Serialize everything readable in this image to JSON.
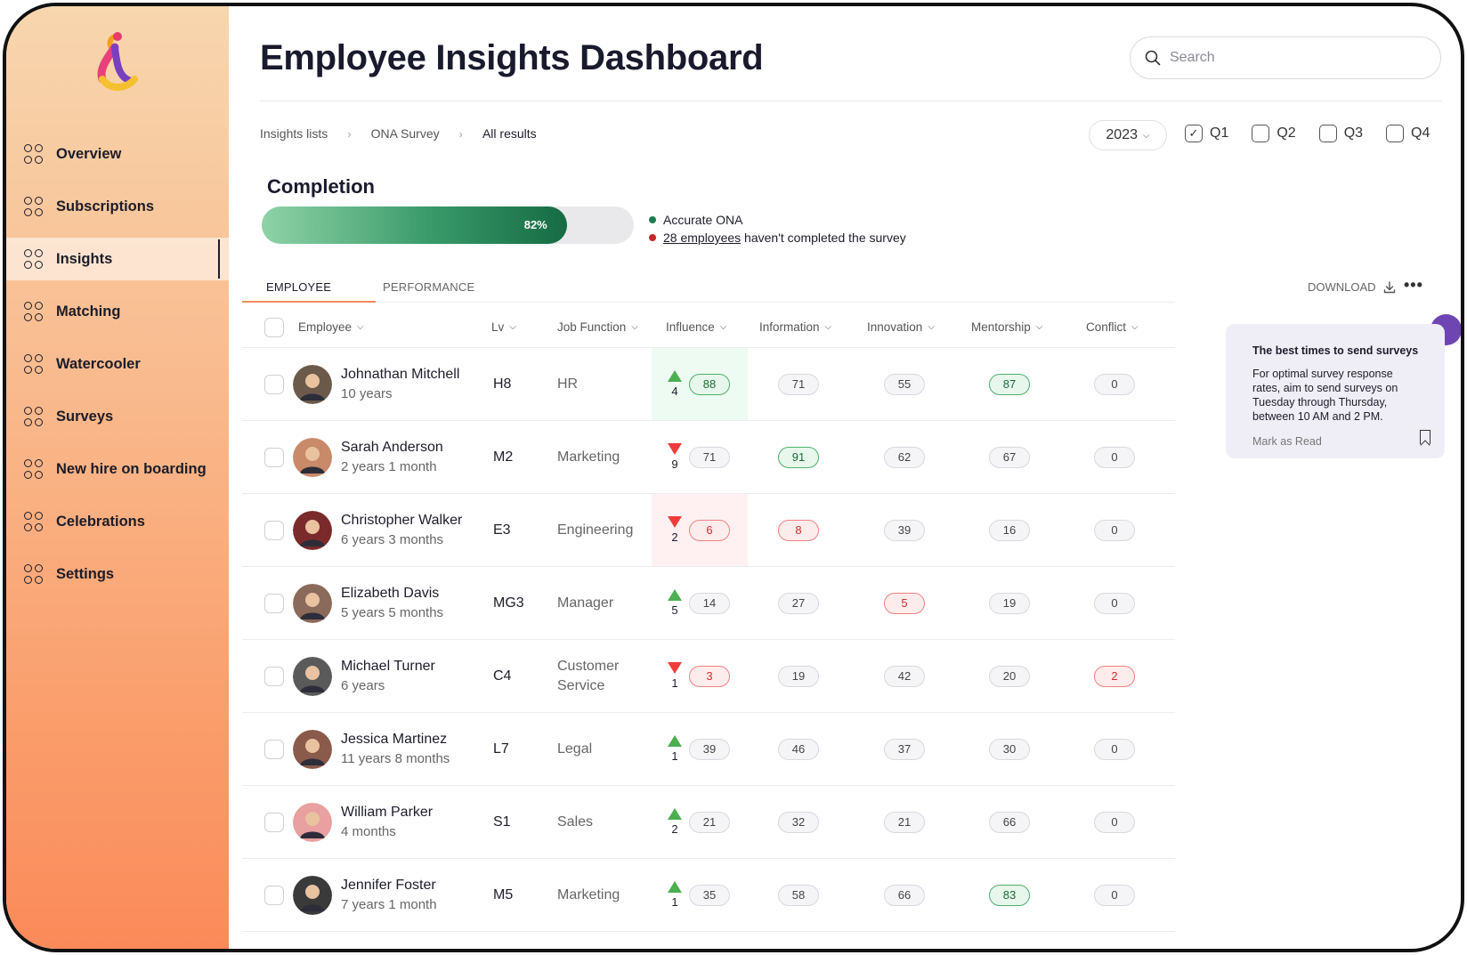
{
  "app": {
    "title": "Employee Insights Dashboard"
  },
  "search": {
    "placeholder": "Search"
  },
  "sidebar": {
    "items": [
      {
        "label": "Overview"
      },
      {
        "label": "Subscriptions"
      },
      {
        "label": "Insights",
        "active": true
      },
      {
        "label": "Matching"
      },
      {
        "label": "Watercooler"
      },
      {
        "label": "Surveys"
      },
      {
        "label": "New hire on boarding"
      },
      {
        "label": "Celebrations"
      },
      {
        "label": "Settings"
      }
    ]
  },
  "breadcrumb": {
    "items": [
      "Insights lists",
      "ONA Survey",
      "All results"
    ]
  },
  "filters": {
    "year": "2023",
    "quarters": [
      {
        "label": "Q1",
        "checked": true
      },
      {
        "label": "Q2",
        "checked": false
      },
      {
        "label": "Q3",
        "checked": false
      },
      {
        "label": "Q4",
        "checked": false
      }
    ]
  },
  "completion": {
    "title": "Completion",
    "percent": 82,
    "percent_label": "82%",
    "legend_accurate": "Accurate ONA",
    "legend_link": "28 employees",
    "legend_rest": " haven't completed the survey",
    "accent_green": "#1f7a4d",
    "accent_red": "#c62828"
  },
  "tabs": {
    "employee": "EMPLOYEE",
    "performance": "PERFORMANCE",
    "download": "DOWNLOAD"
  },
  "table": {
    "headers": {
      "employee": "Employee",
      "lv": "Lv",
      "job": "Job Function",
      "influence": "Influence",
      "information": "Information",
      "innovation": "Innovation",
      "mentorship": "Mentorship",
      "conflict": "Conflict"
    },
    "rows": [
      {
        "name": "Johnathan Mitchell",
        "tenure": "10 years",
        "lv": "H8",
        "job": "HR",
        "trend": "up",
        "trend_value": "4",
        "influence": "88",
        "information": "71",
        "innovation": "55",
        "mentorship": "87",
        "conflict": "0"
      },
      {
        "name": "Sarah Anderson",
        "tenure": "2 years 1 month",
        "lv": "M2",
        "job": "Marketing",
        "trend": "down",
        "trend_value": "9",
        "influence": "71",
        "information": "91",
        "innovation": "62",
        "mentorship": "67",
        "conflict": "0"
      },
      {
        "name": "Christopher Walker",
        "tenure": "6 years 3 months",
        "lv": "E3",
        "job": "Engineering",
        "trend": "down",
        "trend_value": "2",
        "influence": "6",
        "information": "8",
        "innovation": "39",
        "mentorship": "16",
        "conflict": "0"
      },
      {
        "name": "Elizabeth Davis",
        "tenure": "5 years 5 months",
        "lv": "MG3",
        "job": "Manager",
        "trend": "up",
        "trend_value": "5",
        "influence": "14",
        "information": "27",
        "innovation": "5",
        "mentorship": "19",
        "conflict": "0"
      },
      {
        "name": "Michael Turner",
        "tenure": "6 years",
        "lv": "C4",
        "job": "Customer Service",
        "trend": "down",
        "trend_value": "1",
        "influence": "3",
        "information": "19",
        "innovation": "42",
        "mentorship": "20",
        "conflict": "2"
      },
      {
        "name": "Jessica Martinez",
        "tenure": "11 years 8 months",
        "lv": "L7",
        "job": "Legal",
        "trend": "up",
        "trend_value": "1",
        "influence": "39",
        "information": "46",
        "innovation": "37",
        "mentorship": "30",
        "conflict": "0"
      },
      {
        "name": "William Parker",
        "tenure": "4 months",
        "lv": "S1",
        "job": "Sales",
        "trend": "up",
        "trend_value": "2",
        "influence": "21",
        "information": "32",
        "innovation": "21",
        "mentorship": "66",
        "conflict": "0"
      },
      {
        "name": "Jennifer Foster",
        "tenure": "7 years 1 month",
        "lv": "M5",
        "job": "Marketing",
        "trend": "up",
        "trend_value": "1",
        "influence": "35",
        "information": "58",
        "innovation": "66",
        "mentorship": "83",
        "conflict": "0"
      }
    ]
  },
  "tip": {
    "title": "The best times to send surveys",
    "body": "For optimal survey response rates, aim to send surveys on Tuesday through Thursday, between 10 AM and 2 PM.",
    "action": "Mark as Read"
  }
}
